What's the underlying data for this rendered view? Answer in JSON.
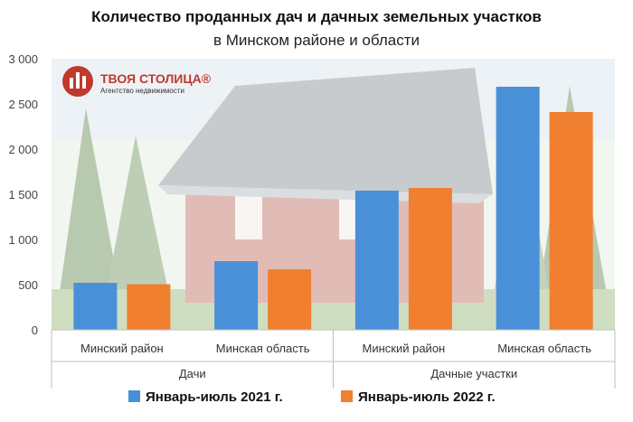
{
  "chart_data": {
    "type": "bar",
    "title": "Количество проданных дач и дачных земельных участков",
    "subtitle": "в Минском районе и области",
    "categories": [
      "Минский район",
      "Минская область",
      "Минский район",
      "Минская область"
    ],
    "groups": [
      {
        "label": "Дачи",
        "span": [
          0,
          1
        ]
      },
      {
        "label": "Дачные участки",
        "span": [
          2,
          3
        ]
      }
    ],
    "series": [
      {
        "name": "Январь-июль 2021 г.",
        "color": "#4a90d9",
        "values": [
          520,
          760,
          1540,
          2690
        ]
      },
      {
        "name": "Январь-июль 2022 г.",
        "color": "#f07f30",
        "values": [
          505,
          670,
          1570,
          2410
        ]
      }
    ],
    "yticks": [
      "0",
      "500",
      "1 000",
      "1 500",
      "2 000",
      "2 500",
      "3 000"
    ],
    "ylim": [
      0,
      3000
    ],
    "grid": false,
    "legend_position": "bottom"
  },
  "logo": {
    "name": "ТВОЯ СТОЛИЦА®",
    "tagline": "Агентство недвижимости"
  }
}
